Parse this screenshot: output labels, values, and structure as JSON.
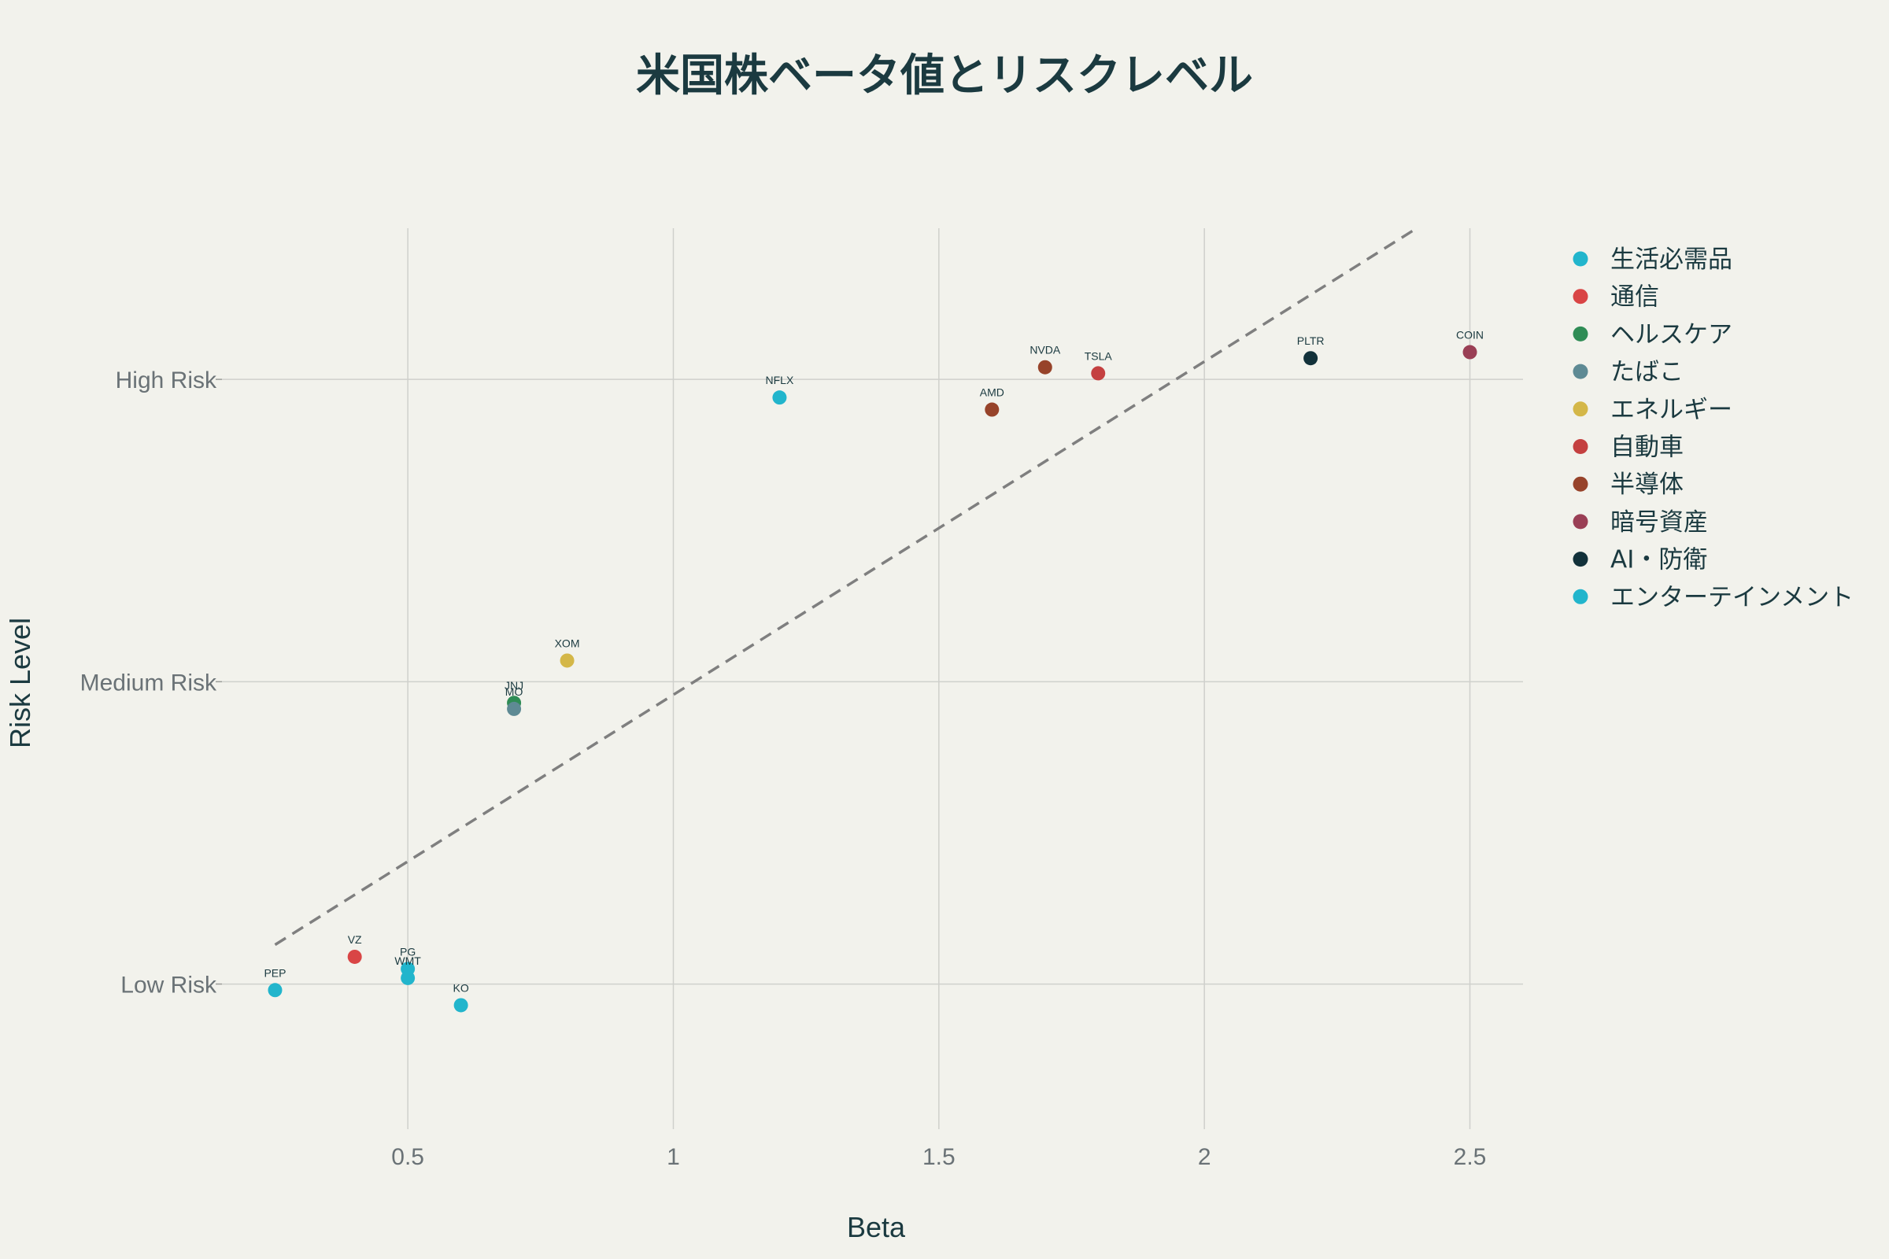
{
  "chart_data": {
    "type": "scatter",
    "title": "米国株ベータ値とリスクレベル",
    "xlabel": "Beta",
    "ylabel": "Risk Level",
    "xlim": [
      0.15,
      2.6
    ],
    "ylim": [
      -0.48,
      2.5
    ],
    "x_ticks": [
      {
        "value": 0.5,
        "label": "0.5"
      },
      {
        "value": 1,
        "label": "1"
      },
      {
        "value": 1.5,
        "label": "1.5"
      },
      {
        "value": 2,
        "label": "2"
      },
      {
        "value": 2.5,
        "label": "2.5"
      }
    ],
    "y_ticks": [
      {
        "value": 0,
        "label": "Low Risk"
      },
      {
        "value": 1,
        "label": "Medium Risk"
      },
      {
        "value": 2,
        "label": "High Risk"
      }
    ],
    "grid": true,
    "legend_position": "right",
    "trendline": {
      "style": "dashed",
      "color": "#7f7f7f",
      "x": [
        0.25,
        2.4
      ],
      "y": [
        0.13,
        2.5
      ]
    },
    "series": [
      {
        "name": "生活必需品",
        "color": "#22b5cc",
        "points": [
          {
            "label": "PEP",
            "x": 0.25,
            "y": -0.02
          },
          {
            "label": "PG",
            "x": 0.5,
            "y": 0.05
          },
          {
            "label": "WMT",
            "x": 0.5,
            "y": 0.02
          },
          {
            "label": "KO",
            "x": 0.6,
            "y": -0.07
          }
        ]
      },
      {
        "name": "通信",
        "color": "#d94545",
        "points": [
          {
            "label": "VZ",
            "x": 0.4,
            "y": 0.09
          }
        ]
      },
      {
        "name": "ヘルスケア",
        "color": "#2f8c55",
        "points": [
          {
            "label": "JNJ",
            "x": 0.7,
            "y": 0.93
          }
        ]
      },
      {
        "name": "たばこ",
        "color": "#5e8a94",
        "points": [
          {
            "label": "MO",
            "x": 0.7,
            "y": 0.91
          }
        ]
      },
      {
        "name": "エネルギー",
        "color": "#d4b748",
        "points": [
          {
            "label": "XOM",
            "x": 0.8,
            "y": 1.07
          }
        ]
      },
      {
        "name": "自動車",
        "color": "#c44040",
        "points": [
          {
            "label": "TSLA",
            "x": 1.8,
            "y": 2.02
          }
        ]
      },
      {
        "name": "半導体",
        "color": "#97432a",
        "points": [
          {
            "label": "NVDA",
            "x": 1.7,
            "y": 2.04
          },
          {
            "label": "AMD",
            "x": 1.6,
            "y": 1.9
          }
        ]
      },
      {
        "name": "暗号資産",
        "color": "#9a3f55",
        "points": [
          {
            "label": "COIN",
            "x": 2.5,
            "y": 2.09
          }
        ]
      },
      {
        "name": "AI・防衛",
        "color": "#12313a",
        "points": [
          {
            "label": "PLTR",
            "x": 2.2,
            "y": 2.07
          }
        ]
      },
      {
        "name": "エンターテインメント",
        "color": "#22b5cc",
        "points": [
          {
            "label": "NFLX",
            "x": 1.2,
            "y": 1.94
          }
        ]
      }
    ]
  }
}
